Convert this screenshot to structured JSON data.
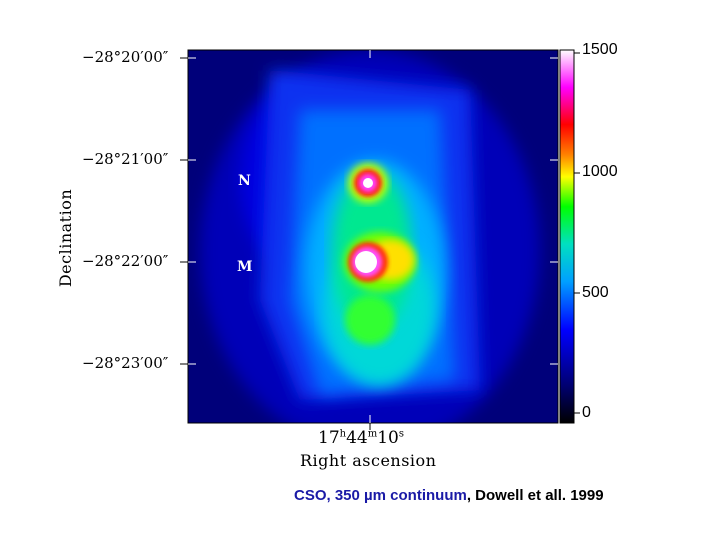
{
  "figure": {
    "declination_ticks": [
      "−28°20′00″",
      "−28°21′00″",
      "−28°22′00″",
      "−28°23′00″"
    ],
    "y_axis_label": "Declination",
    "x_tick": {
      "hours": "17",
      "h_unit": "h",
      "minutes": "44",
      "m_unit": "m",
      "seconds": "10",
      "s_unit": "s"
    },
    "x_axis_label": "Right ascension",
    "colorbar_ticks": [
      "1500",
      "1000",
      "500",
      "0"
    ],
    "markers": [
      "N",
      "M"
    ],
    "colormap": [
      "#000000",
      "#000080",
      "#0000ff",
      "#00a0ff",
      "#00e0c0",
      "#00ff00",
      "#ffff00",
      "#ff0000",
      "#ff00ff",
      "#ffffff"
    ]
  },
  "caption": {
    "highlight": "CSO, 350 µm continuum",
    "rest": ", Dowell et all. 1999"
  }
}
